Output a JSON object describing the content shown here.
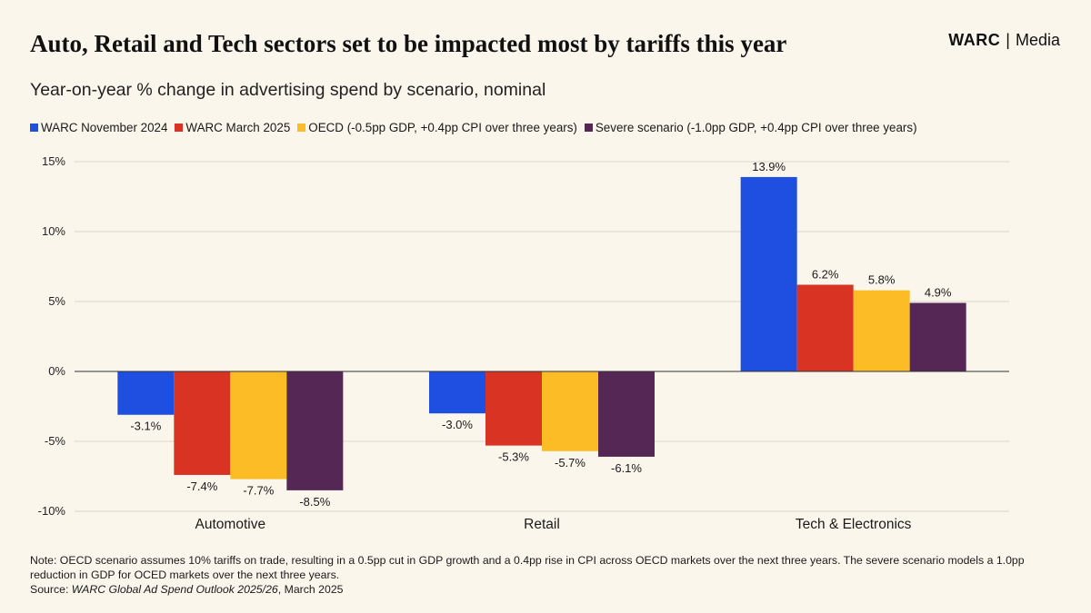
{
  "header": {
    "title": "Auto, Retail and Tech sectors set to be impacted most by tariffs this year",
    "brand_name": "WARC",
    "brand_separator": "|",
    "brand_suffix": "Media"
  },
  "chart_data": {
    "type": "bar",
    "title": "Auto, Retail and Tech sectors set to be impacted most by tariffs this year",
    "subtitle": "Year-on-year % change in advertising spend by scenario, nominal",
    "xlabel": "",
    "ylabel": "",
    "categories": [
      "Automotive",
      "Retail",
      "Tech & Electronics"
    ],
    "series": [
      {
        "name": "WARC November 2024",
        "color": "#1f4fe0",
        "values": [
          -3.1,
          -3.0,
          13.9
        ],
        "labels": [
          "-3.1%",
          "-3.0%",
          "13.9%"
        ]
      },
      {
        "name": "WARC March 2025",
        "color": "#d83323",
        "values": [
          -7.4,
          -5.3,
          6.2
        ],
        "labels": [
          "-7.4%",
          "-5.3%",
          "6.2%"
        ]
      },
      {
        "name": "OECD (-0.5pp GDP, +0.4pp CPI over three years)",
        "color": "#fbbc25",
        "values": [
          -7.7,
          -5.7,
          5.8
        ],
        "labels": [
          "-7.7%",
          "-5.7%",
          "5.8%"
        ]
      },
      {
        "name": "Severe scenario (-1.0pp GDP, +0.4pp CPI over three years)",
        "color": "#552755",
        "values": [
          -8.5,
          -6.1,
          4.9
        ],
        "labels": [
          "-8.5%",
          "-6.1%",
          "4.9%"
        ]
      }
    ],
    "ylim": [
      -10,
      15
    ],
    "yticks": [
      15,
      10,
      5,
      0,
      -5,
      -10
    ],
    "ytick_labels": [
      "15%",
      "10%",
      "5%",
      "0%",
      "-5%",
      "-10%"
    ],
    "gridlines": true,
    "legend_position": "top-left"
  },
  "footer": {
    "note": "Note: OECD scenario assumes 10% tariffs on trade, resulting in a 0.5pp cut in GDP growth and a 0.4pp rise in CPI across OECD markets over the next three years. The severe scenario models a 1.0pp reduction in GDP for OCED markets over the next three years.",
    "source_prefix": "Source: ",
    "source_title": "WARC Global Ad Spend Outlook 2025/26",
    "source_suffix": ", March 2025"
  }
}
